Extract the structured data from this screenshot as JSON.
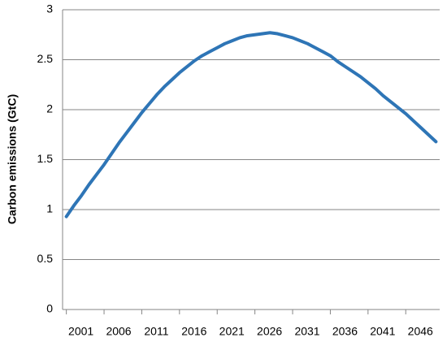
{
  "chart_data": {
    "type": "line",
    "y_label": "Carbon emissions (GtC)",
    "x": [
      2001,
      2002,
      2003,
      2004,
      2005,
      2006,
      2007,
      2008,
      2009,
      2010,
      2011,
      2012,
      2013,
      2014,
      2015,
      2016,
      2017,
      2018,
      2019,
      2020,
      2021,
      2022,
      2023,
      2024,
      2025,
      2026,
      2027,
      2028,
      2029,
      2030,
      2031,
      2032,
      2033,
      2034,
      2035,
      2036,
      2037,
      2038,
      2039,
      2040,
      2041,
      2042,
      2043,
      2044,
      2045,
      2046,
      2047,
      2048,
      2049,
      2050
    ],
    "values": [
      0.93,
      1.04,
      1.14,
      1.25,
      1.35,
      1.45,
      1.56,
      1.67,
      1.77,
      1.87,
      1.97,
      2.06,
      2.15,
      2.23,
      2.3,
      2.37,
      2.43,
      2.49,
      2.54,
      2.58,
      2.62,
      2.66,
      2.69,
      2.72,
      2.74,
      2.75,
      2.76,
      2.77,
      2.76,
      2.74,
      2.72,
      2.69,
      2.66,
      2.62,
      2.58,
      2.54,
      2.48,
      2.43,
      2.38,
      2.33,
      2.27,
      2.21,
      2.14,
      2.08,
      2.02,
      1.96,
      1.89,
      1.82,
      1.75,
      1.68
    ],
    "color": "#2e75b6",
    "xlim": [
      2000.5,
      2050.5
    ],
    "xticks": [
      2001,
      2006,
      2011,
      2016,
      2021,
      2026,
      2031,
      2036,
      2041,
      2046
    ],
    "ylim": [
      0,
      3
    ],
    "yticks": [
      0,
      0.5,
      1,
      1.5,
      2,
      2.5,
      3
    ],
    "grid": true
  }
}
